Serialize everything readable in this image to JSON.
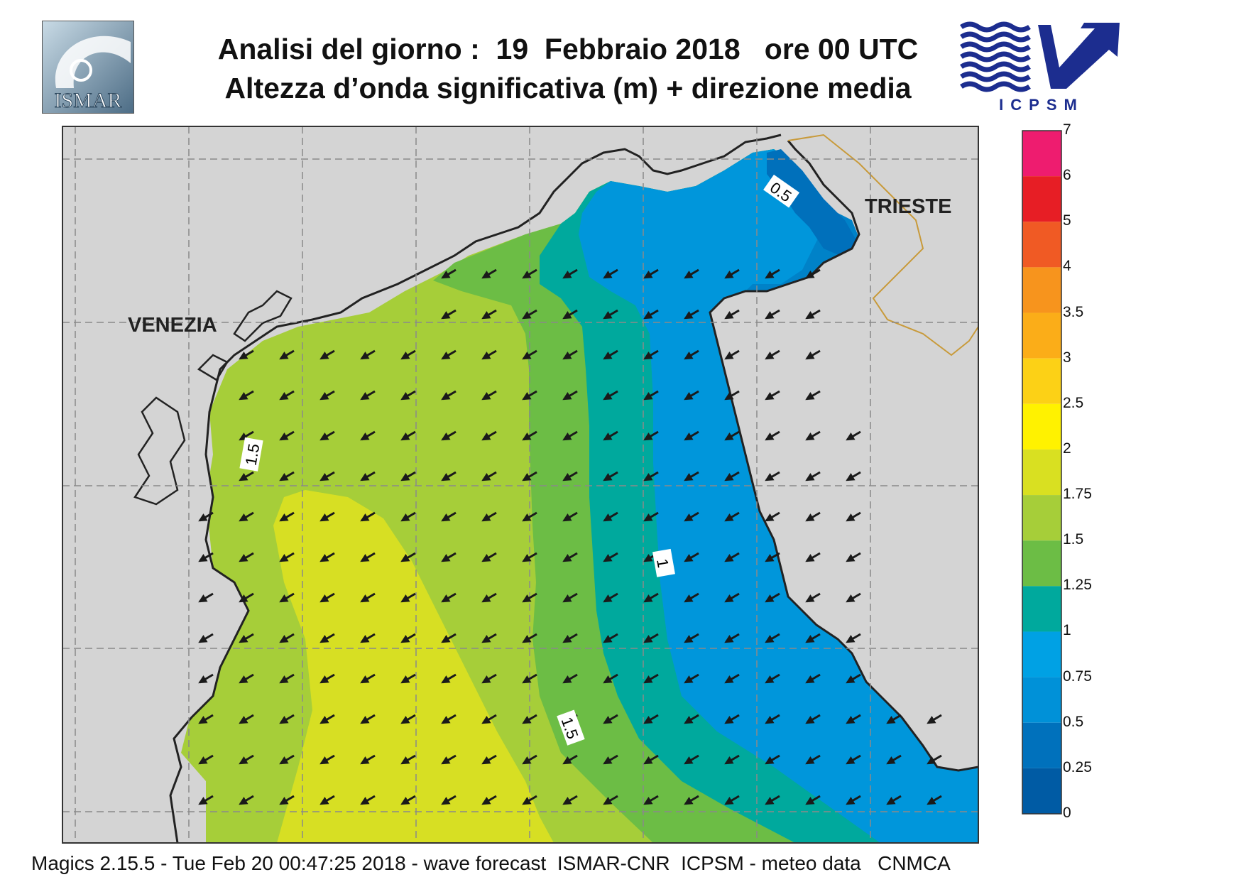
{
  "header": {
    "title_line1": "Analisi del giorno :  19  Febbraio 2018   ore 00 UTC",
    "title_line2": "Altezza d’onda significativa (m) + direzione media"
  },
  "logos": {
    "left": {
      "text": "ISMAR",
      "icon": "ismar-logo-icon"
    },
    "right": {
      "text": "ICPSM",
      "icon": "icpsm-logo-icon"
    }
  },
  "map": {
    "cities": [
      "VENEZIA",
      "TRIESTE"
    ],
    "contour_labels": [
      "0.5",
      "1.5",
      "1",
      "1.5"
    ],
    "wave_direction": "toward south-west",
    "colors": {
      "land": "#d4d4d4",
      "coast": "#222222",
      "border": "#c89a3a",
      "grid": "#8a8a8a"
    }
  },
  "colorbar": {
    "levels": [
      "7",
      "6",
      "5",
      "4",
      "3.5",
      "3",
      "2.5",
      "2",
      "1.75",
      "1.5",
      "1.25",
      "1",
      "0.75",
      "0.5",
      "0.25",
      "0"
    ],
    "colors": [
      "#ee1c6f",
      "#e71e25",
      "#f05a24",
      "#f7941d",
      "#fbad18",
      "#fcd116",
      "#fff200",
      "#d9e021",
      "#a6ce39",
      "#6cbd45",
      "#00a99d",
      "#00a1e4",
      "#0091d8",
      "#0071bc",
      "#005ba4"
    ]
  },
  "footer": {
    "text": "Magics 2.15.5 - Tue Feb 20 00:47:25 2018 - wave forecast  ISMAR-CNR  ICPSM - meteo data   CNMCA"
  }
}
